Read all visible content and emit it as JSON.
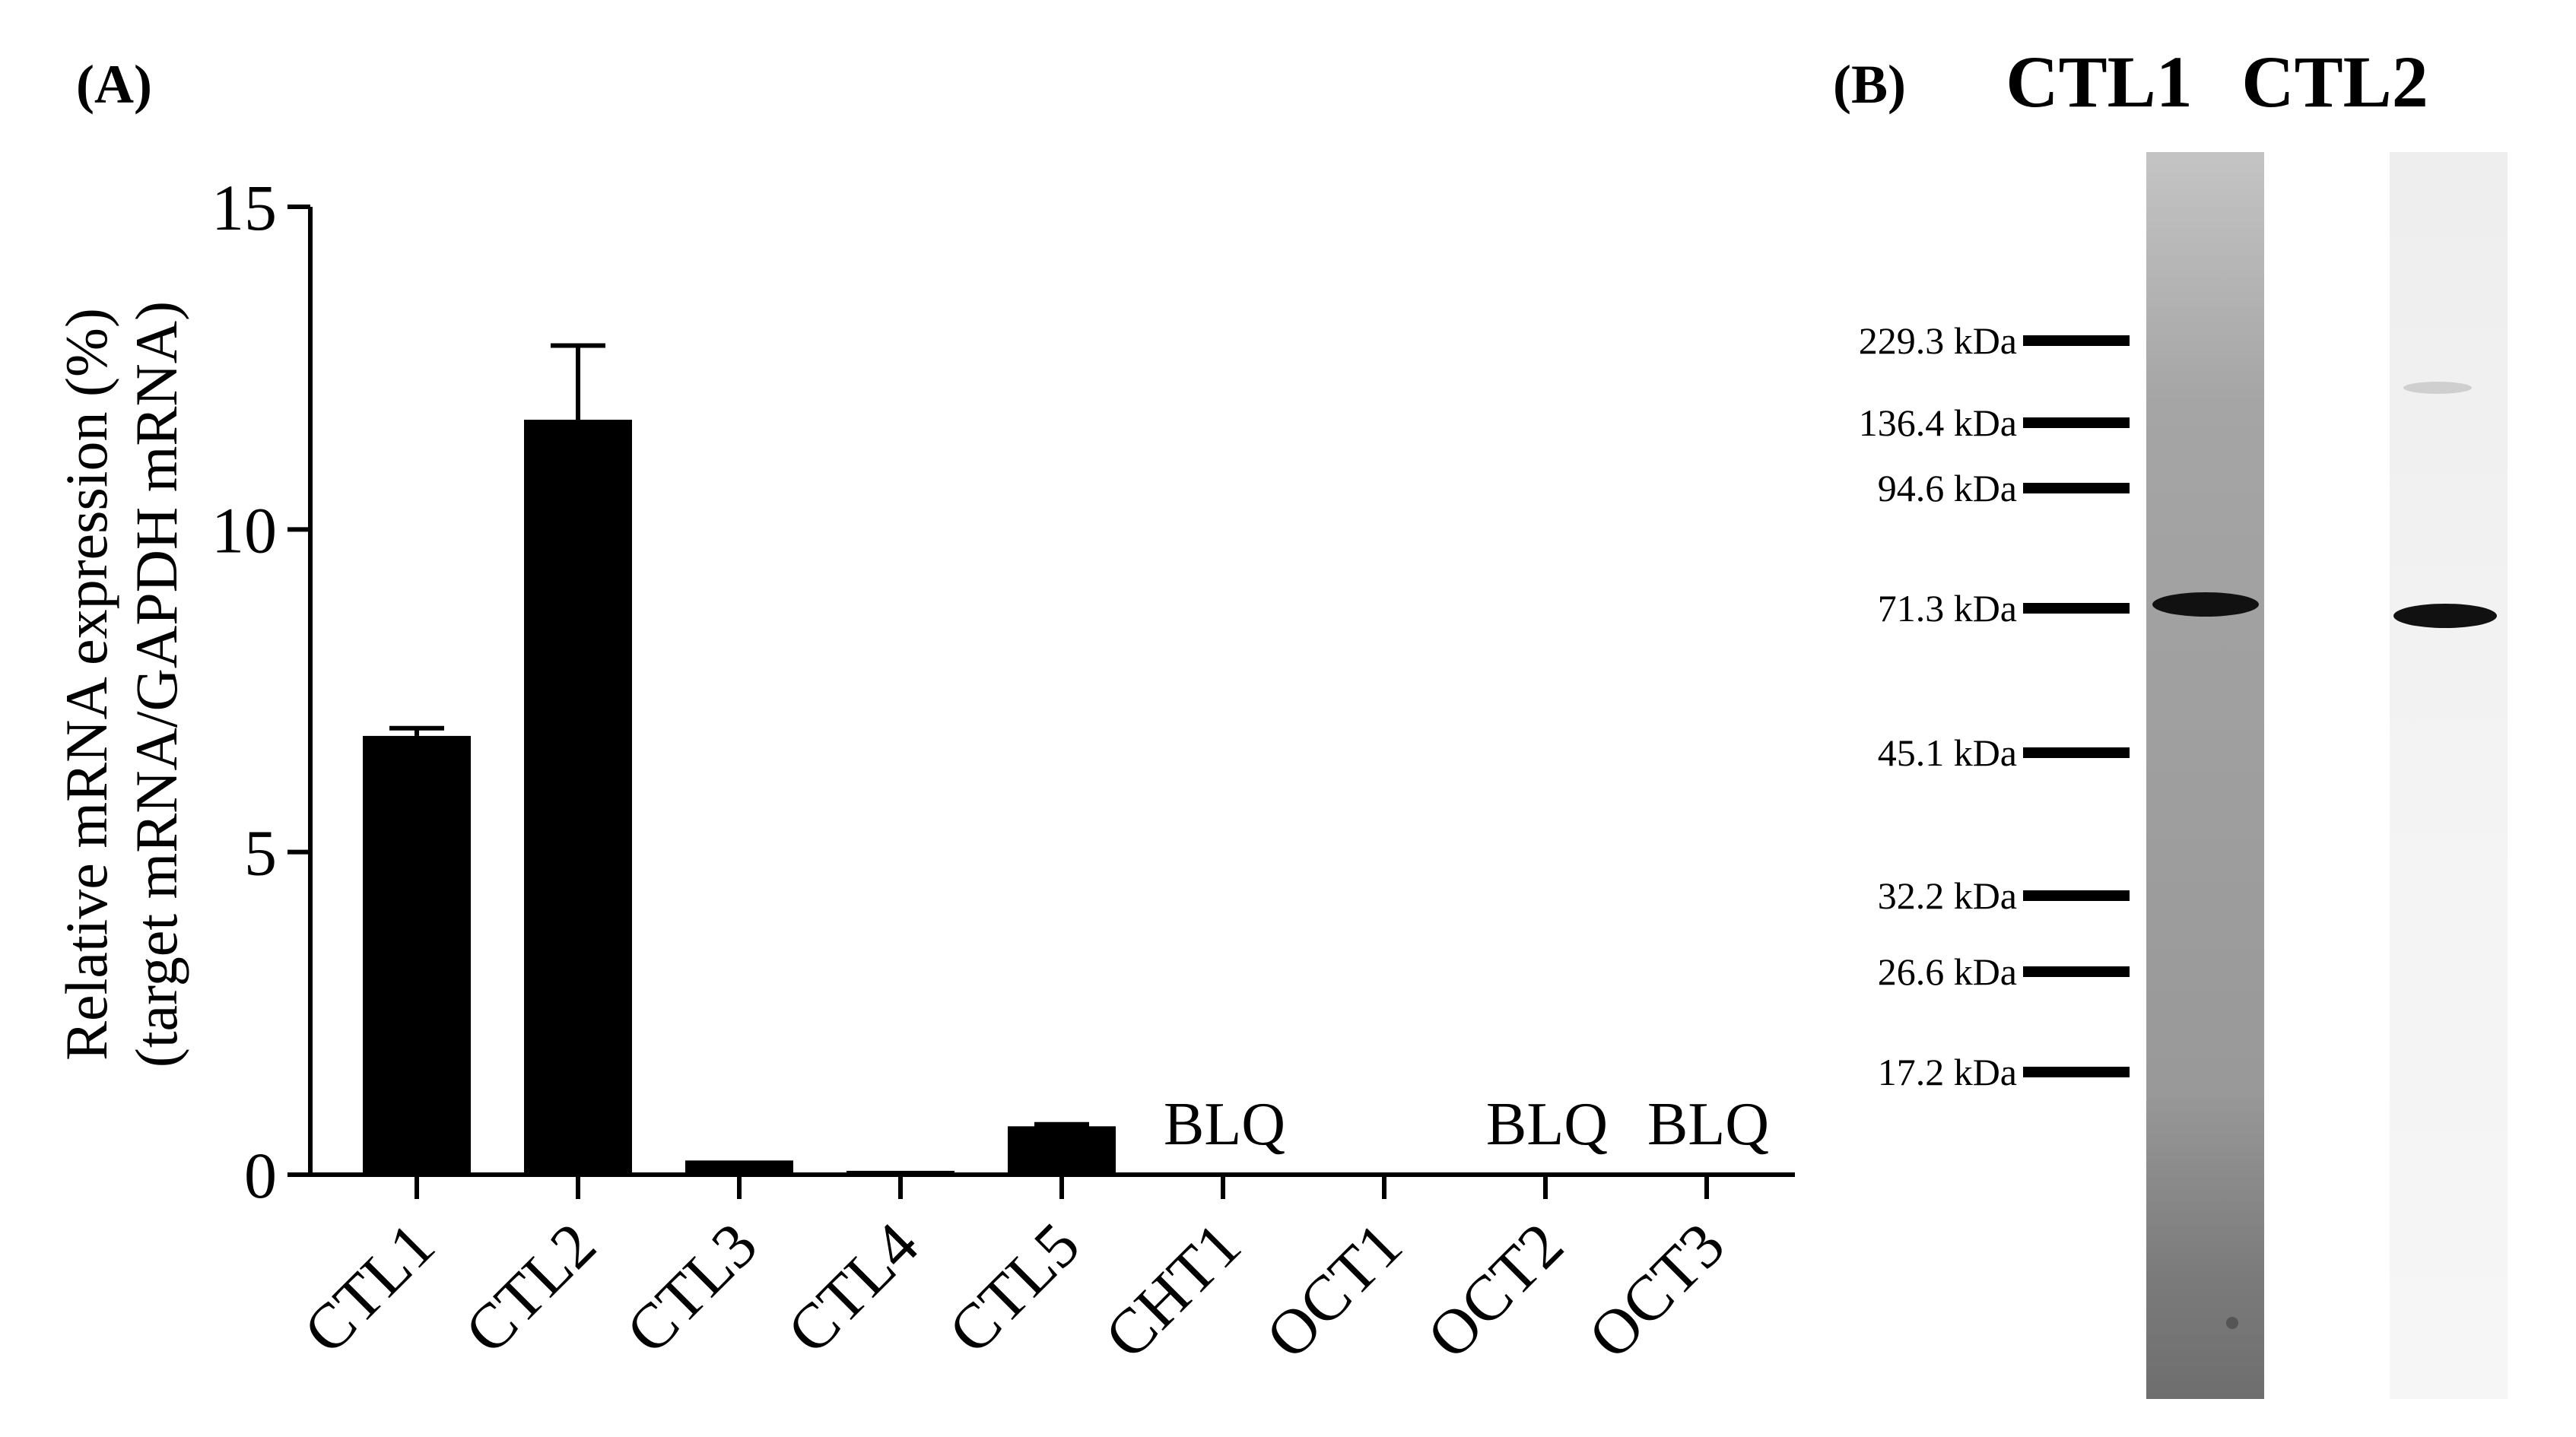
{
  "panels": {
    "a_label": "(A)",
    "b_label": "(B)"
  },
  "chart_data": {
    "type": "bar",
    "categories": [
      "CTL1",
      "CTL2",
      "CTL3",
      "CTL4",
      "CTL5",
      "CHT1",
      "OCT1",
      "OCT2",
      "OCT3"
    ],
    "values": [
      6.8,
      11.7,
      0.22,
      0.06,
      0.75,
      null,
      0.03,
      null,
      null
    ],
    "errors": [
      0.12,
      1.15,
      0.0,
      0.0,
      0.03,
      null,
      0.0,
      null,
      null
    ],
    "annotations": [
      "",
      "",
      "",
      "",
      "",
      "BLQ",
      "",
      "BLQ",
      "BLQ"
    ],
    "ylabel_line1": "Relative mRNA expression (%)",
    "ylabel_line2": "(target mRNA/GAPDH mRNA)",
    "ylim": [
      0,
      15
    ],
    "yticks": [
      "0",
      "5",
      "10",
      "15"
    ],
    "ytick_values": [
      0,
      5,
      10,
      15
    ],
    "bar_color": "#000000",
    "grid": false
  },
  "western_blot": {
    "lanes": [
      "CTL1",
      "CTL2"
    ],
    "markers": [
      "229.3 kDa",
      "136.4 kDa",
      "94.6 kDa",
      "71.3 kDa",
      "45.1 kDa",
      "32.2 kDa",
      "26.6 kDa",
      "17.2 kDa"
    ],
    "lane_colors": {
      "CTL1": "#9b9b9b",
      "CTL2": "#f1f1f1"
    }
  }
}
